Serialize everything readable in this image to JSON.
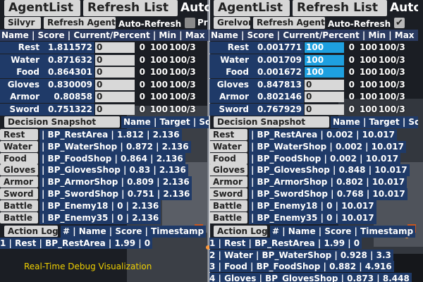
{
  "colors": {
    "background": "#1e2228",
    "row_blue": "#1f3a68",
    "button_gray": "#d6d6d6",
    "bar_full": "#1ea0e0",
    "caption_yellow": "#f0d000"
  },
  "panels": [
    {
      "agent_list_label": "AgentList",
      "refresh_list_label": "Refresh List",
      "auto_label_big": "Auto-",
      "agent_name": "Silvyr",
      "refresh_agent_label": "Refresh Agent",
      "auto_refresh_label": "Auto-Refresh",
      "auto_refresh_checked": false,
      "auto_refresh_check_glyph": "",
      "after_check": "Pr",
      "header": "Name | Score | Current/Percent | Min | Max | Re",
      "actions": [
        {
          "name": "Rest",
          "score": "1.811572",
          "bar": "0",
          "bar_percent": 0,
          "min": "0",
          "max": "100",
          "result": "100/3"
        },
        {
          "name": "Water",
          "score": "0.871632",
          "bar": "0",
          "bar_percent": 0,
          "min": "0",
          "max": "100",
          "result": "100/3"
        },
        {
          "name": "Food",
          "score": "0.864301",
          "bar": "0",
          "bar_percent": 0,
          "min": "0",
          "max": "100",
          "result": "100/3"
        },
        {
          "name": "Gloves",
          "score": "0.830009",
          "bar": "0",
          "bar_percent": 0,
          "min": "0",
          "max": "100",
          "result": "100/3"
        },
        {
          "name": "Armor",
          "score": "0.80858",
          "bar": "0",
          "bar_percent": 0,
          "min": "0",
          "max": "100",
          "result": "100/3"
        },
        {
          "name": "Sword",
          "score": "0.751322",
          "bar": "0",
          "bar_percent": 0,
          "min": "0",
          "max": "100",
          "result": "100/3"
        }
      ],
      "decision_label": "Decision Snapshot",
      "decision_header": "Name | Target | Score | T",
      "snapshot": [
        {
          "btn": "Rest",
          "text": "| BP_RestArea | 1.812 | 2.136"
        },
        {
          "btn": "Water",
          "text": "| BP_WaterShop | 0.872 | 2.136"
        },
        {
          "btn": "Food",
          "text": "| BP_FoodShop | 0.864 | 2.136"
        },
        {
          "btn": "Gloves",
          "text": "| BP_GlovesShop | 0.83 | 2.136"
        },
        {
          "btn": "Armor",
          "text": "| BP_ArmorShop | 0.809 | 2.136"
        },
        {
          "btn": "Sword",
          "text": "| BP_SwordShop | 0.751 | 2.136"
        },
        {
          "btn": "Battle",
          "text": "| BP_Enemy18 | 0 | 2.136"
        },
        {
          "btn": "Battle",
          "text": "| BP_Enemy35 | 0 | 2.136"
        }
      ],
      "action_log_label": "Action Log",
      "action_log_header": "# | Name | Score | Timestamp",
      "log": [
        "1 | Rest | BP_RestArea | 1.99 | 0"
      ]
    },
    {
      "agent_list_label": "AgentList",
      "refresh_list_label": "Refresh List",
      "auto_label_big": "Auto-",
      "agent_name": "Grelvor",
      "refresh_agent_label": "Refresh Agent",
      "auto_refresh_label": "Auto-Refresh",
      "auto_refresh_checked": true,
      "auto_refresh_check_glyph": "✔",
      "after_check": "",
      "header": "Name | Score | Current/Percent | Min | Max | Rego",
      "actions": [
        {
          "name": "Rest",
          "score": "0.001771",
          "bar": "100",
          "bar_percent": 100,
          "min": "0",
          "max": "100",
          "result": "100/3"
        },
        {
          "name": "Water",
          "score": "0.001709",
          "bar": "100",
          "bar_percent": 100,
          "min": "0",
          "max": "100",
          "result": "100/3"
        },
        {
          "name": "Food",
          "score": "0.001672",
          "bar": "100",
          "bar_percent": 100,
          "min": "0",
          "max": "100",
          "result": "100/3"
        },
        {
          "name": "Gloves",
          "score": "0.847813",
          "bar": "0",
          "bar_percent": 0,
          "min": "0",
          "max": "100",
          "result": "100/3"
        },
        {
          "name": "Armor",
          "score": "0.802146",
          "bar": "0",
          "bar_percent": 0,
          "min": "0",
          "max": "100",
          "result": "100/3"
        },
        {
          "name": "Sword",
          "score": "0.767929",
          "bar": "0",
          "bar_percent": 0,
          "min": "0",
          "max": "100",
          "result": "100/3"
        }
      ],
      "decision_label": "Decision Snapshot",
      "decision_header": "Name | Target | Score | Tir",
      "snapshot": [
        {
          "btn": "Rest",
          "text": "| BP_RestArea | 0.002 | 10.017"
        },
        {
          "btn": "Water",
          "text": "| BP_WaterShop | 0.002 | 10.017"
        },
        {
          "btn": "Food",
          "text": "| BP_FoodShop | 0.002 | 10.017"
        },
        {
          "btn": "Gloves",
          "text": "| BP_GlovesShop | 0.848 | 10.017"
        },
        {
          "btn": "Armor",
          "text": "| BP_ArmorShop | 0.802 | 10.017"
        },
        {
          "btn": "Sword",
          "text": "| BP_SwordShop | 0.768 | 10.017"
        },
        {
          "btn": "Battle",
          "text": "| BP_Enemy18 | 0 | 10.017"
        },
        {
          "btn": "Battle",
          "text": "| BP_Enemy35 | 0 | 10.017"
        }
      ],
      "action_log_label": "Action Log",
      "action_log_header": "# | Name | Score | Timestamp",
      "log": [
        "1 | Rest | BP_RestArea | 1.99 | 0",
        "2 | Water | BP_WaterShop | 0.928 | 3.3",
        "3 | Food | BP_FoodShop | 0.882 | 4.916",
        "4 | Gloves | BP_GlovesShop | 0.873 | 8.448"
      ]
    }
  ],
  "caption": "Real-Time Debug Visualization"
}
